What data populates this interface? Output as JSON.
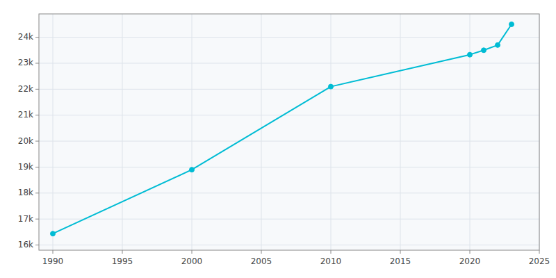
{
  "chart_data": {
    "type": "line",
    "x": [
      1990,
      2000,
      2010,
      2020,
      2021,
      2022,
      2023
    ],
    "values": [
      16437,
      18900,
      22100,
      23330,
      23500,
      23700,
      24500
    ],
    "color": "#00BCD4",
    "marker": "circle",
    "xlim": [
      1989,
      2025
    ],
    "ylim": [
      15800,
      24900
    ],
    "xticks": [
      1990,
      1995,
      2000,
      2005,
      2010,
      2015,
      2020,
      2025
    ],
    "yticks": [
      {
        "value": 16000,
        "label": "16k"
      },
      {
        "value": 17000,
        "label": "17k"
      },
      {
        "value": 18000,
        "label": "18k"
      },
      {
        "value": 19000,
        "label": "19k"
      },
      {
        "value": 20000,
        "label": "20k"
      },
      {
        "value": 21000,
        "label": "21k"
      },
      {
        "value": 22000,
        "label": "22k"
      },
      {
        "value": 23000,
        "label": "23k"
      },
      {
        "value": 24000,
        "label": "24k"
      }
    ],
    "grid": true
  }
}
